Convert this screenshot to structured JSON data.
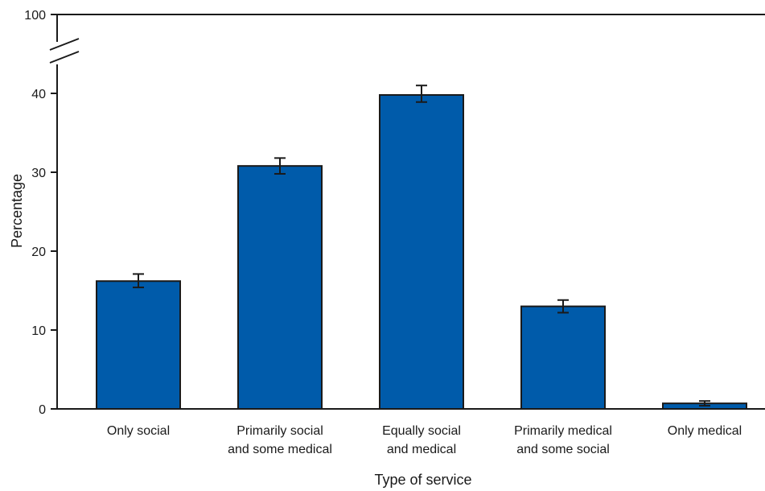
{
  "chart_data": {
    "type": "bar",
    "title": "",
    "xlabel": "Type of service",
    "ylabel": "Percentage",
    "categories": [
      [
        "Only social"
      ],
      [
        "Primarily social",
        "and some medical"
      ],
      [
        "Equally social",
        "and medical"
      ],
      [
        "Primarily medical",
        "and some social"
      ],
      [
        "Only medical"
      ]
    ],
    "values": [
      16.2,
      30.8,
      39.8,
      13.0,
      0.7
    ],
    "error_low": [
      15.4,
      29.8,
      38.9,
      12.2,
      0.4
    ],
    "error_high": [
      17.1,
      31.8,
      41.0,
      13.8,
      1.0
    ],
    "ylim": [
      0,
      100
    ],
    "axis_break": true,
    "y_ticks": [
      0,
      10,
      20,
      30,
      40,
      100
    ],
    "grid": false,
    "bar_color": "#005BAA",
    "bar_edge_color": "#1a1a1a"
  }
}
